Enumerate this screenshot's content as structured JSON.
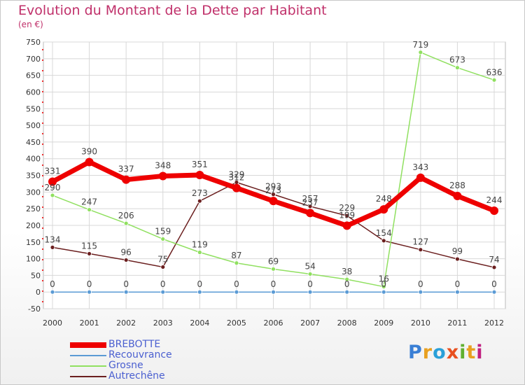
{
  "chart_data": {
    "type": "line",
    "title": "Evolution du Montant de la Dette par Habitant",
    "subtitle": "(en €)",
    "x": [
      "2000",
      "2001",
      "2002",
      "2003",
      "2004",
      "2005",
      "2006",
      "2007",
      "2008",
      "2009",
      "2010",
      "2011",
      "2012"
    ],
    "ylim": [
      -50,
      750
    ],
    "yticks": [
      -50,
      0,
      50,
      100,
      150,
      200,
      250,
      300,
      350,
      400,
      450,
      500,
      550,
      600,
      650,
      700,
      750
    ],
    "grid": true,
    "legend_position": "bottom-left",
    "series": [
      {
        "name": "BREBOTTE",
        "color": "#ee0000",
        "values": [
          331,
          390,
          337,
          348,
          351,
          312,
          273,
          237,
          199,
          248,
          343,
          288,
          244
        ]
      },
      {
        "name": "Recouvrance",
        "color": "#5b9bd5",
        "values": [
          0,
          0,
          0,
          0,
          0,
          0,
          0,
          0,
          0,
          0,
          0,
          0,
          0
        ]
      },
      {
        "name": "Grosne",
        "color": "#90e060",
        "values": [
          290,
          247,
          206,
          159,
          119,
          87,
          69,
          54,
          38,
          16,
          719,
          673,
          636
        ]
      },
      {
        "name": "Autrechêne",
        "color": "#6b1f1f",
        "values": [
          134,
          115,
          96,
          75,
          273,
          329,
          293,
          257,
          229,
          154,
          127,
          99,
          74
        ]
      }
    ]
  },
  "logo": {
    "letters": [
      "P",
      "r",
      "o",
      "x",
      "i",
      "t",
      "i"
    ],
    "colors": [
      "#3a7fd5",
      "#e8a020",
      "#2aa0d8",
      "#e85020",
      "#60b030",
      "#e8a020",
      "#c02080"
    ]
  }
}
